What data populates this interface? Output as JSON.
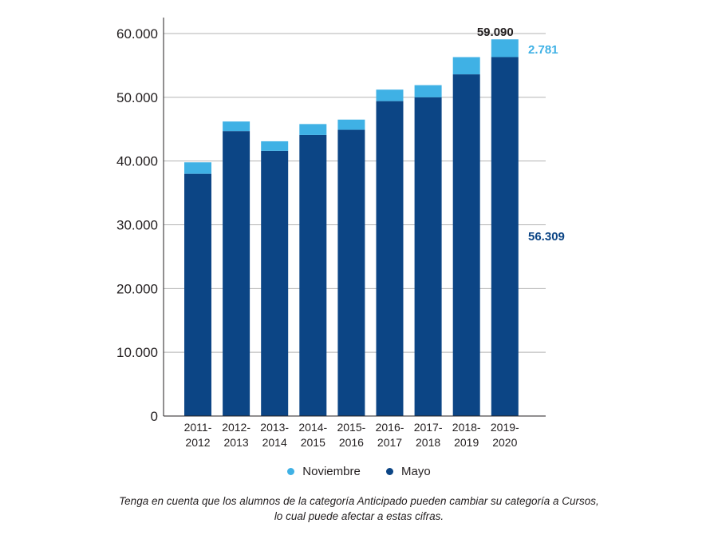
{
  "chart_data": {
    "type": "bar",
    "stacked": true,
    "categories": [
      "2011-\n2012",
      "2012-\n2013",
      "2013-\n2014",
      "2014-\n2015",
      "2015-\n2016",
      "2016-\n2017",
      "2017-\n2018",
      "2018-\n2019",
      "2019-\n2020"
    ],
    "series": [
      {
        "name": "Mayo",
        "color": "#0c4585",
        "values": [
          38000,
          44700,
          41600,
          44100,
          44900,
          49400,
          50000,
          53600,
          56309
        ]
      },
      {
        "name": "Noviembre",
        "color": "#3fb1e5",
        "values": [
          1800,
          1500,
          1500,
          1700,
          1600,
          1800,
          1900,
          2700,
          2781
        ]
      }
    ],
    "yticks": [
      "0",
      "10.000",
      "20.000",
      "30.000",
      "40.000",
      "50.000",
      "60.000"
    ],
    "ylim": [
      0,
      60000
    ],
    "grid": true,
    "annotations": {
      "total": "59.090",
      "noviembre_last": "2.781",
      "mayo_last": "56.309"
    },
    "legend": {
      "position": "bottom",
      "items": [
        "Noviembre",
        "Mayo"
      ]
    }
  },
  "footnote": {
    "line1": "Tenga en cuenta que los alumnos de la categoría Anticipado pueden cambiar su categoría a Cursos,",
    "line2": "lo cual puede afectar a estas cifras."
  }
}
